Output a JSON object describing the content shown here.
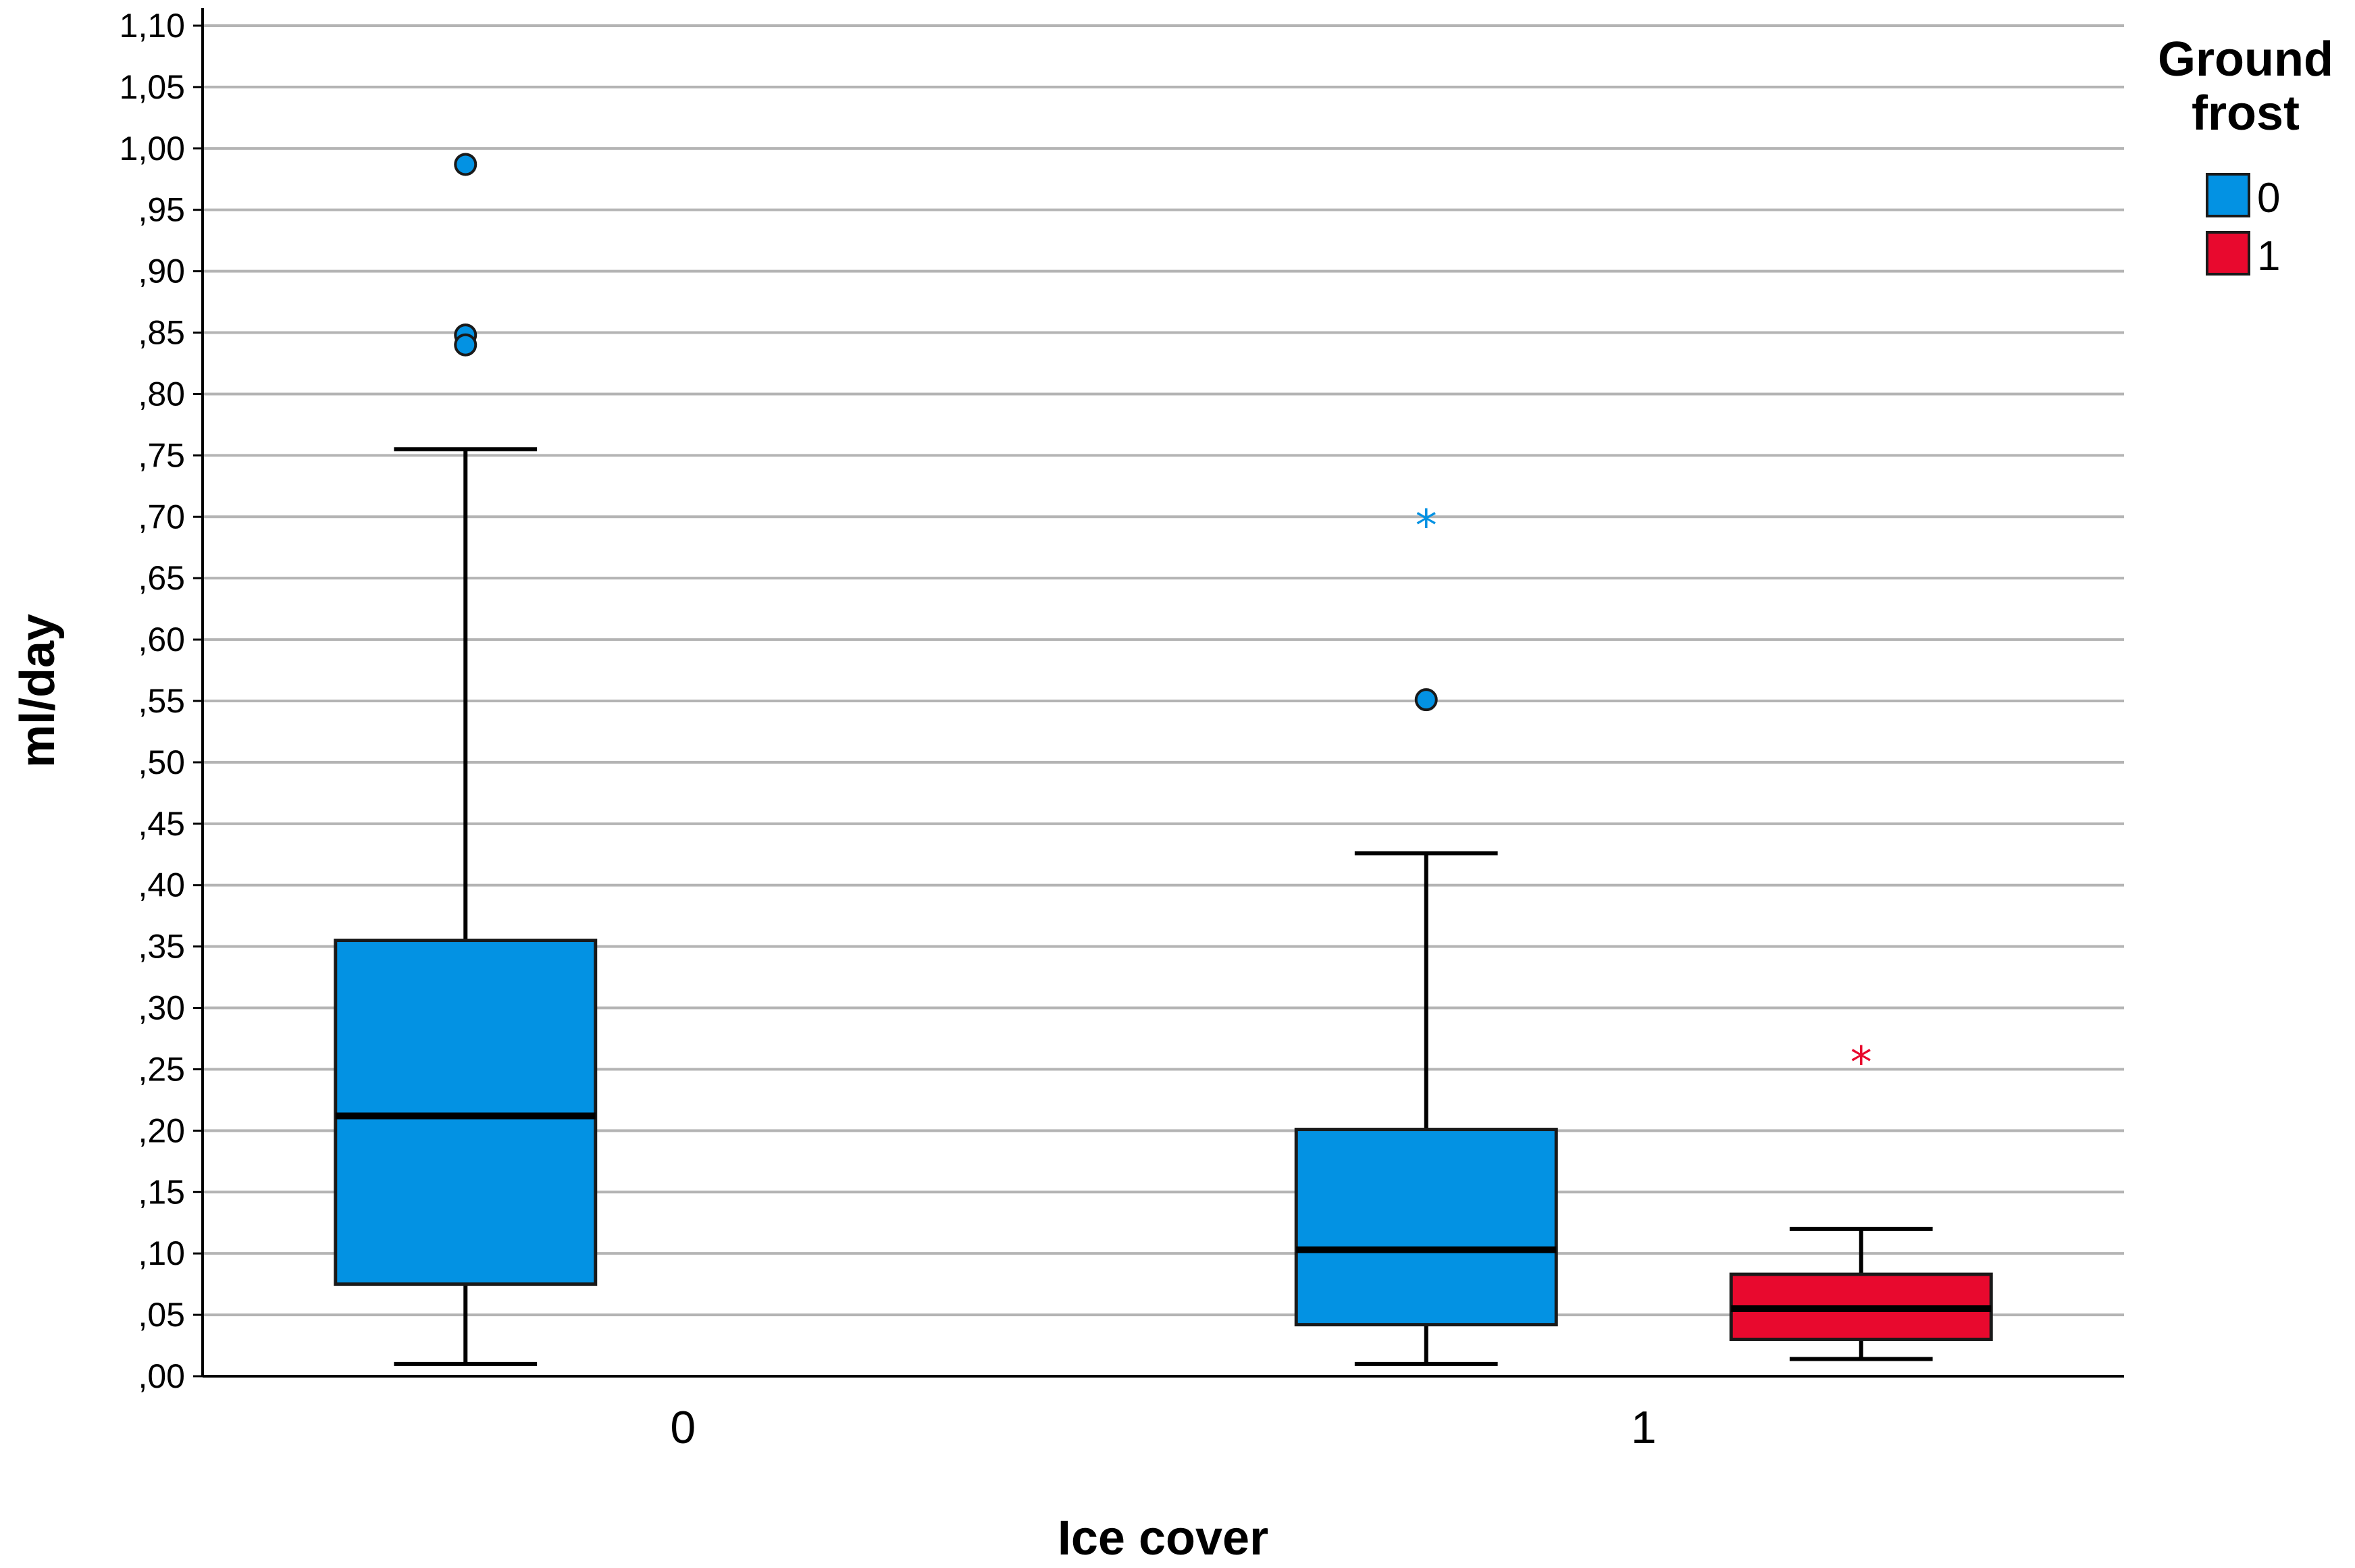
{
  "chart_data": {
    "type": "boxplot",
    "title": "",
    "xlabel": "Ice cover",
    "ylabel": "ml/day",
    "ylim": [
      0,
      1.1
    ],
    "ytick_step": 0.05,
    "grid": true,
    "legend_position": "top-right",
    "legend_title_lines": [
      "Ground",
      "frost"
    ],
    "categories": [
      "0",
      "1"
    ],
    "series": [
      {
        "name": "0",
        "color": "#0392e3",
        "boxes": [
          {
            "category": "0",
            "whisker_low": 0.01,
            "q1": 0.075,
            "median": 0.212,
            "q3": 0.355,
            "whisker_high": 0.755,
            "outliers": [
              0.987,
              0.848,
              0.84
            ],
            "extremes": []
          },
          {
            "category": "1",
            "whisker_low": 0.01,
            "q1": 0.042,
            "median": 0.103,
            "q3": 0.201,
            "whisker_high": 0.426,
            "outliers": [
              0.551
            ],
            "extremes": [
              0.697
            ]
          }
        ]
      },
      {
        "name": "1",
        "color": "#e8092e",
        "boxes": [
          {
            "category": "1",
            "whisker_low": 0.014,
            "q1": 0.03,
            "median": 0.055,
            "q3": 0.083,
            "whisker_high": 0.12,
            "outliers": [],
            "extremes": [
              0.26
            ]
          }
        ]
      }
    ]
  }
}
